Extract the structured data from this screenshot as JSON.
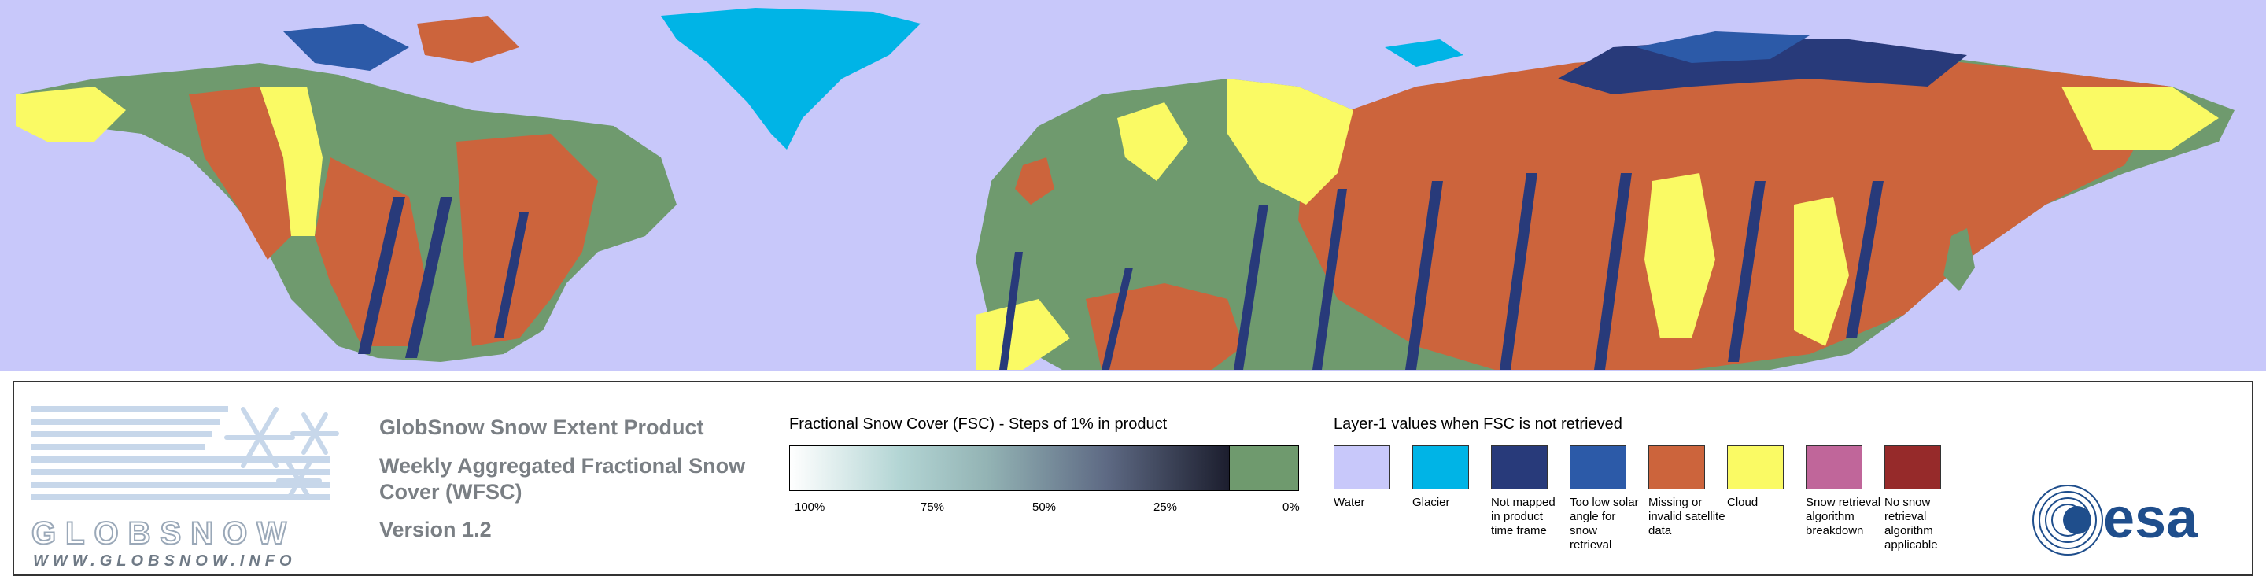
{
  "logo": {
    "word": "GLOBSNOW",
    "url": "WWW.GLOBSNOW.INFO"
  },
  "product": {
    "title": "GlobSnow Snow Extent Product",
    "subtitle": "Weekly Aggregated Fractional Snow Cover (WFSC)",
    "version": "Version 1.2"
  },
  "fsc_legend": {
    "title": "Fractional Snow Cover (FSC) - Steps of 1% in product",
    "ticks": [
      "100%",
      "75%",
      "50%",
      "25%",
      "0%"
    ]
  },
  "layer1_legend": {
    "title": "Layer-1 values when FSC is not retrieved",
    "items": [
      {
        "label": "Water",
        "color": "#c8c8fa"
      },
      {
        "label": "Glacier",
        "color": "#00b4e6"
      },
      {
        "label": "Not mapped in product time frame",
        "color": "#283a7a"
      },
      {
        "label": "Too low solar angle for snow retrieval",
        "color": "#2c5aa8"
      },
      {
        "label": "Missing or invalid satellite data",
        "color": "#cc643c"
      },
      {
        "label": "Cloud",
        "color": "#fafa64"
      },
      {
        "label": "Snow retrieval algorithm breakdown",
        "color": "#c0669a"
      },
      {
        "label": "No snow retrieval algorithm applicable",
        "color": "#962a2a"
      }
    ]
  },
  "map": {
    "colors": {
      "water": "#c8c8fa",
      "glacier": "#00b4e6",
      "not_mapped": "#283a7a",
      "low_sun": "#2c5aa8",
      "missing": "#cc643c",
      "cloud": "#fafa64",
      "snow_free": "#6f9a6e"
    }
  },
  "esa_logo": "esa"
}
